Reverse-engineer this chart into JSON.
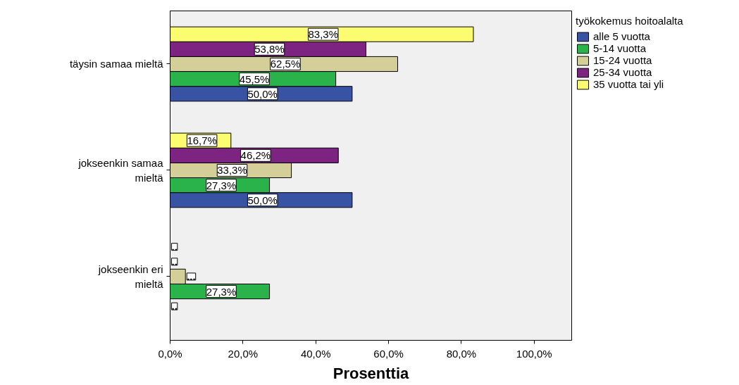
{
  "chart_data": {
    "type": "bar",
    "orientation": "horizontal",
    "xlabel": "Prosenttia",
    "legend_title": "työkokemus hoitoalalta",
    "categories": [
      "täysin samaa mieltä",
      "jokseenkin samaa mieltä",
      "jokseenkin eri mieltä"
    ],
    "series": [
      {
        "name": "alle 5 vuotta",
        "color": "#3953a4",
        "values": [
          50.0,
          50.0,
          0
        ],
        "value_labels": [
          "50,0%",
          "50,0%",
          ".."
        ]
      },
      {
        "name": "5-14 vuotta",
        "color": "#2bb34b",
        "values": [
          45.5,
          27.3,
          27.3
        ],
        "value_labels": [
          "45,5%",
          "27,3%",
          "27,3%"
        ]
      },
      {
        "name": "15-24 vuotta",
        "color": "#d4cf99",
        "values": [
          62.5,
          33.3,
          4.2
        ],
        "value_labels": [
          "62,5%",
          "33,3%",
          "..."
        ]
      },
      {
        "name": "25-34 vuotta",
        "color": "#7d2382",
        "values": [
          53.8,
          46.2,
          0
        ],
        "value_labels": [
          "53,8%",
          "46,2%",
          ".."
        ]
      },
      {
        "name": "35 vuotta tai yli",
        "color": "#fcfc70",
        "values": [
          83.3,
          16.7,
          0
        ],
        "value_labels": [
          "83,3%",
          "16,7%",
          ".."
        ]
      }
    ],
    "xlim": [
      0,
      110.3
    ],
    "xticks": [
      {
        "value": 0,
        "label": "0,0%"
      },
      {
        "value": 20,
        "label": "20,0%"
      },
      {
        "value": 40,
        "label": "40,0%"
      },
      {
        "value": 60,
        "label": "60,0%"
      },
      {
        "value": 80,
        "label": "80,0%"
      },
      {
        "value": 100,
        "label": "100,0%"
      }
    ],
    "grid": false,
    "legend": "top right"
  }
}
